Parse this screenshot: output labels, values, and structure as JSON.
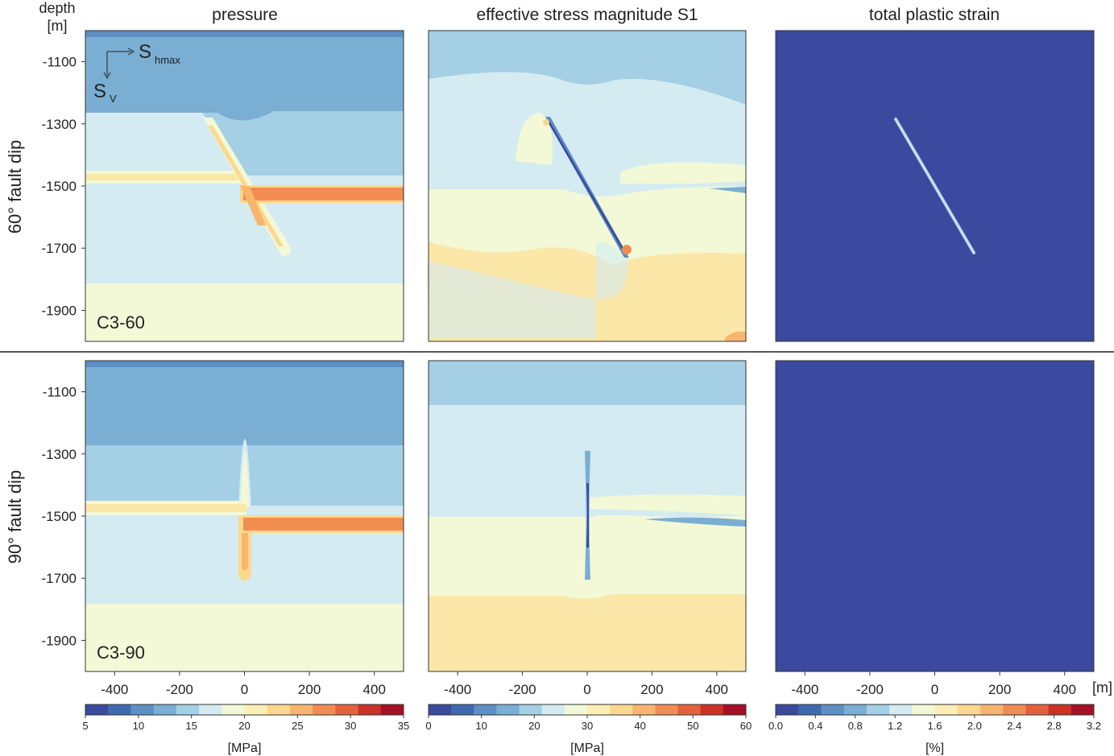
{
  "figure": {
    "column_titles": [
      "pressure",
      "effective stress magnitude S1",
      "total plastic strain"
    ],
    "row_labels": [
      "60° fault dip",
      "90° fault dip"
    ],
    "case_labels": [
      "C3-60",
      "C3-90"
    ],
    "depth_label_line1": "depth",
    "depth_label_line2": "[m]",
    "x_unit_label": "[m]",
    "axis_symbol_S": "S",
    "axis_sub_hmax": "hmax",
    "axis_sub_v": "V"
  },
  "chart_data": {
    "type": "heatmap",
    "x_ticks": [
      -400,
      -200,
      0,
      200,
      400
    ],
    "x_tick_labels": [
      "-400",
      "-200",
      "0",
      "200",
      "400"
    ],
    "y_ticks": [
      -1100,
      -1300,
      -1500,
      -1700,
      -1900
    ],
    "y_tick_labels": [
      "-1100",
      "-1300",
      "-1500",
      "-1700",
      "-1900"
    ],
    "xlim": [
      -490,
      490
    ],
    "ylim": [
      -2000,
      -1000
    ],
    "colorbars": [
      {
        "name": "pressure",
        "unit": "[MPa]",
        "min": 5,
        "max": 35,
        "ticks": [
          5,
          10,
          15,
          20,
          25,
          30,
          35
        ],
        "tick_labels": [
          "5",
          "10",
          "15",
          "20",
          "25",
          "30",
          "35"
        ]
      },
      {
        "name": "effective stress magnitude S1",
        "unit": "[MPa]",
        "min": 0,
        "max": 60,
        "ticks": [
          0,
          10,
          20,
          30,
          40,
          50,
          60
        ],
        "tick_labels": [
          "0",
          "10",
          "20",
          "30",
          "40",
          "50",
          "60"
        ]
      },
      {
        "name": "total plastic strain",
        "unit": "[%]",
        "min": 0,
        "max": 3.2,
        "ticks": [
          0,
          0.4,
          0.8,
          1.2,
          1.6,
          2.0,
          2.4,
          2.8,
          3.2
        ],
        "tick_labels": [
          "0.0",
          "0.4",
          "0.8",
          "1.2",
          "1.6",
          "2.0",
          "2.4",
          "2.8",
          "3.2"
        ]
      }
    ],
    "palette": [
      "#3b4a9f",
      "#4169b0",
      "#5d8fc3",
      "#7aaed3",
      "#a4cfe4",
      "#d4ebf2",
      "#f3f9d6",
      "#fbefb6",
      "#fbd88d",
      "#f9b56d",
      "#f28d52",
      "#e5603d",
      "#cc3328",
      "#a50f26"
    ]
  }
}
